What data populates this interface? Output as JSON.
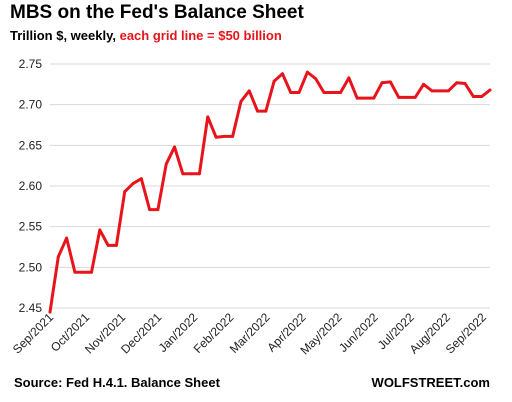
{
  "header": {
    "title": "MBS on the Fed's Balance Sheet",
    "subtitle_prefix": "Trillion $, weekly, ",
    "subtitle_highlight": "each grid line = $50 billion"
  },
  "footer": {
    "source": "Source: Fed H.4.1. Balance Sheet",
    "brand": "WOLFSTREET.com"
  },
  "colors": {
    "line": "#e8141b",
    "grid": "#d9d9d9",
    "highlight": "#e8141b"
  },
  "chart_data": {
    "type": "line",
    "title": "MBS on the Fed's Balance Sheet",
    "xlabel": "",
    "ylabel": "",
    "ylim": [
      2.45,
      2.75
    ],
    "yticks": [
      "2.45",
      "2.50",
      "2.55",
      "2.60",
      "2.65",
      "2.70",
      "2.75"
    ],
    "grid": true,
    "legend": "none",
    "x_tick_labels": [
      "Sep/2021",
      "Oct/2021",
      "Nov/2021",
      "Dec/2021",
      "Jan/2022",
      "Feb/2022",
      "Mar/2022",
      "Apr/2022",
      "May/2022",
      "Jun/2022",
      "Jul/2022",
      "Aug/2022",
      "Sep/2022"
    ],
    "weeks_per_month_tick": 4.345,
    "series": [
      {
        "values": [
          2.445,
          2.513,
          2.536,
          2.494,
          2.494,
          2.494,
          2.546,
          2.527,
          2.527,
          2.593,
          2.603,
          2.609,
          2.571,
          2.571,
          2.627,
          2.648,
          2.615,
          2.615,
          2.615,
          2.685,
          2.66,
          2.661,
          2.661,
          2.704,
          2.717,
          2.692,
          2.692,
          2.729,
          2.738,
          2.715,
          2.715,
          2.74,
          2.732,
          2.715,
          2.715,
          2.715,
          2.733,
          2.708,
          2.708,
          2.708,
          2.727,
          2.728,
          2.709,
          2.709,
          2.709,
          2.725,
          2.717,
          2.717,
          2.717,
          2.727,
          2.726,
          2.71,
          2.71,
          2.718
        ]
      }
    ]
  }
}
